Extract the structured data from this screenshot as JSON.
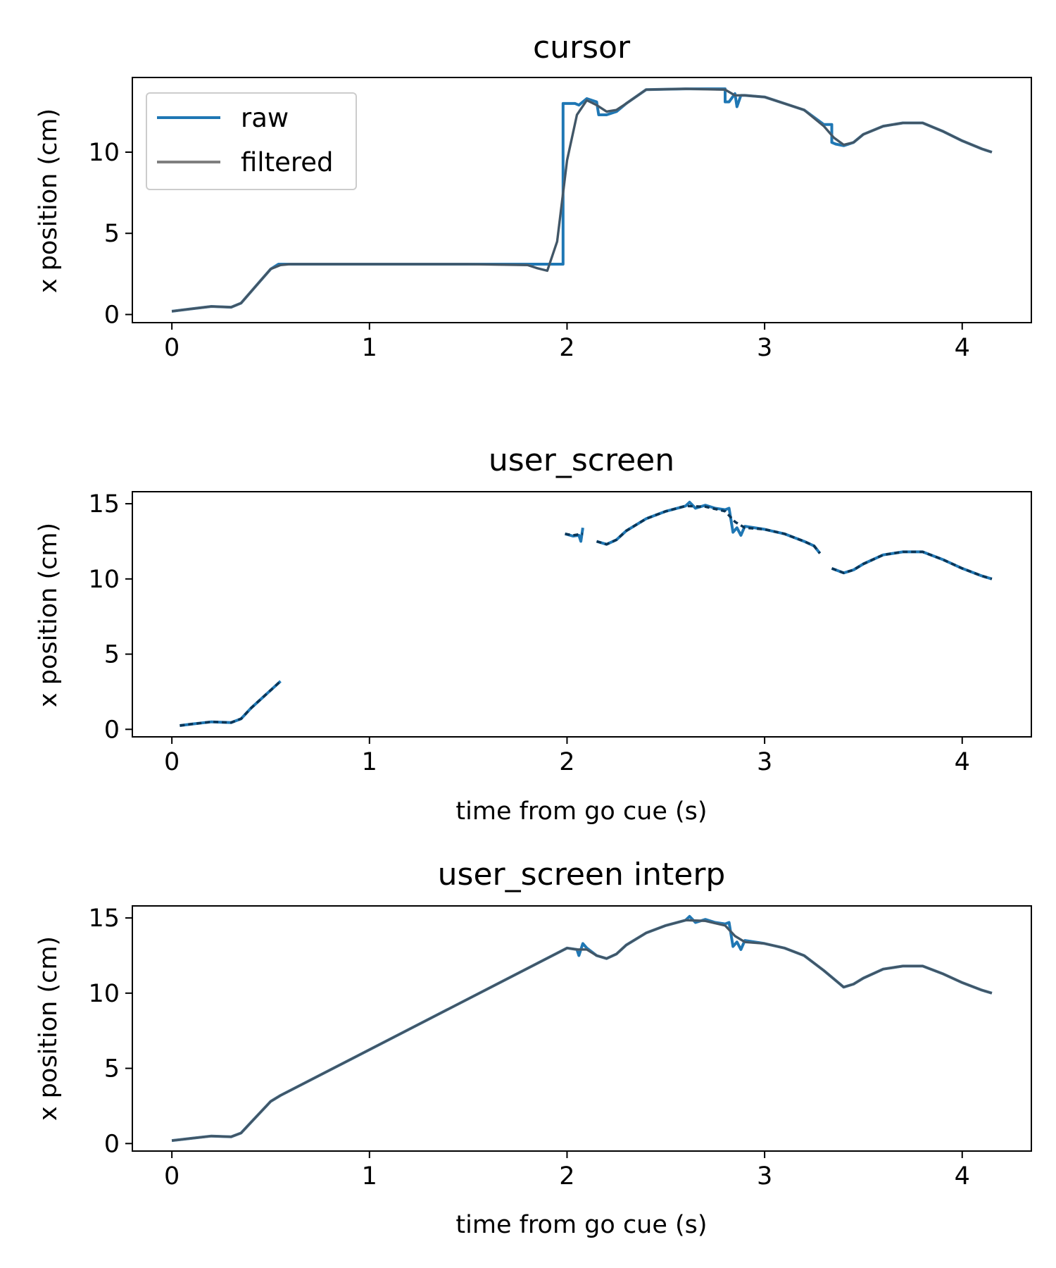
{
  "colors": {
    "raw": "#1f77b4",
    "filtered": "#7f7f7f",
    "filtered_overlap": "#0b3556",
    "axes": "#000000",
    "background": "#ffffff"
  },
  "chart_data": [
    {
      "type": "line",
      "title": "cursor",
      "xlabel": "",
      "ylabel": "x position (cm)",
      "xlim": [
        -0.2,
        4.35
      ],
      "ylim": [
        -0.5,
        14.6
      ],
      "xticks": [
        0,
        1,
        2,
        3,
        4
      ],
      "yticks": [
        0,
        5,
        10
      ],
      "grid": false,
      "legend": {
        "placement": "top-left",
        "entries": [
          "raw",
          "filtered"
        ]
      },
      "series": [
        {
          "name": "raw",
          "color": "#1f77b4",
          "style": "solid",
          "x": [
            0,
            0.1,
            0.2,
            0.3,
            0.35,
            0.4,
            0.45,
            0.5,
            0.54,
            0.55,
            0.6,
            1.0,
            1.5,
            1.9,
            1.98,
            1.98,
            2.0,
            2.04,
            2.06,
            2.1,
            2.15,
            2.16,
            2.2,
            2.25,
            2.3,
            2.4,
            2.6,
            2.8,
            2.8,
            2.82,
            2.85,
            2.86,
            2.88,
            2.9,
            3.0,
            3.1,
            3.2,
            3.3,
            3.34,
            3.34,
            3.36,
            3.4,
            3.45,
            3.5,
            3.6,
            3.7,
            3.8,
            3.9,
            4.0,
            4.1,
            4.15
          ],
          "y": [
            0.2,
            0.35,
            0.5,
            0.45,
            0.7,
            1.4,
            2.1,
            2.8,
            3.1,
            3.1,
            3.1,
            3.1,
            3.1,
            3.1,
            3.1,
            13.0,
            13.0,
            13.0,
            12.9,
            13.3,
            13.1,
            12.3,
            12.3,
            12.5,
            13.0,
            13.85,
            13.9,
            13.9,
            13.1,
            13.1,
            13.6,
            12.8,
            13.5,
            13.5,
            13.4,
            13.0,
            12.6,
            11.7,
            11.7,
            10.6,
            10.5,
            10.4,
            10.6,
            11.1,
            11.6,
            11.8,
            11.8,
            11.3,
            10.7,
            10.2,
            10.0
          ]
        },
        {
          "name": "filtered",
          "color": "#7f7f7f",
          "style": "solid",
          "x": [
            0,
            0.1,
            0.2,
            0.3,
            0.35,
            0.4,
            0.45,
            0.5,
            0.55,
            0.6,
            1.0,
            1.5,
            1.8,
            1.85,
            1.9,
            1.95,
            2.0,
            2.05,
            2.1,
            2.15,
            2.2,
            2.25,
            2.3,
            2.4,
            2.6,
            2.8,
            2.85,
            2.9,
            3.0,
            3.1,
            3.2,
            3.3,
            3.35,
            3.4,
            3.45,
            3.5,
            3.6,
            3.7,
            3.8,
            3.9,
            4.0,
            4.1,
            4.15
          ],
          "y": [
            0.2,
            0.35,
            0.5,
            0.45,
            0.7,
            1.4,
            2.1,
            2.8,
            3.05,
            3.1,
            3.1,
            3.1,
            3.05,
            2.85,
            2.7,
            4.5,
            9.5,
            12.3,
            13.2,
            12.9,
            12.5,
            12.6,
            13.0,
            13.85,
            13.9,
            13.85,
            13.5,
            13.5,
            13.4,
            13.0,
            12.6,
            11.6,
            10.9,
            10.45,
            10.6,
            11.1,
            11.6,
            11.8,
            11.8,
            11.3,
            10.7,
            10.2,
            10.0
          ]
        }
      ]
    },
    {
      "type": "line",
      "title": "user_screen",
      "xlabel": "time from go cue (s)",
      "ylabel": "x position (cm)",
      "xlim": [
        -0.2,
        4.35
      ],
      "ylim": [
        -0.5,
        15.8
      ],
      "xticks": [
        0,
        1,
        2,
        3,
        4
      ],
      "yticks": [
        0,
        5,
        10,
        15
      ],
      "grid": false,
      "series": [
        {
          "name": "raw",
          "color": "#1f77b4",
          "style": "dashed",
          "segments": [
            {
              "x": [
                0.04,
                0.1,
                0.2,
                0.3,
                0.35,
                0.4,
                0.45,
                0.5,
                0.55
              ],
              "y": [
                0.25,
                0.35,
                0.5,
                0.45,
                0.7,
                1.4,
                2.0,
                2.6,
                3.2
              ]
            },
            {
              "x": [
                1.99,
                2.03,
                2.06,
                2.07,
                2.08
              ],
              "y": [
                13.0,
                12.85,
                12.9,
                12.5,
                13.4
              ]
            },
            {
              "x": [
                2.15,
                2.2,
                2.25,
                2.3,
                2.4,
                2.5,
                2.6,
                2.62,
                2.65,
                2.7,
                2.75,
                2.8,
                2.82,
                2.84,
                2.86,
                2.88,
                2.9,
                3.0,
                3.1,
                3.2,
                3.25,
                3.28
              ],
              "y": [
                12.5,
                12.3,
                12.6,
                13.2,
                14.0,
                14.5,
                14.85,
                15.1,
                14.7,
                14.9,
                14.7,
                14.6,
                14.7,
                13.1,
                13.4,
                12.9,
                13.5,
                13.3,
                13.0,
                12.5,
                12.2,
                11.7
              ]
            },
            {
              "x": [
                3.34,
                3.4,
                3.45,
                3.5,
                3.6,
                3.7,
                3.8,
                3.9,
                4.0,
                4.1,
                4.15
              ],
              "y": [
                10.7,
                10.4,
                10.6,
                11.0,
                11.6,
                11.8,
                11.8,
                11.3,
                10.7,
                10.2,
                10.0
              ]
            }
          ]
        },
        {
          "name": "filtered",
          "color": "#7f7f7f",
          "style": "dashed",
          "segments": [
            {
              "x": [
                0.04,
                0.1,
                0.2,
                0.3,
                0.35,
                0.4,
                0.45,
                0.5,
                0.55
              ],
              "y": [
                0.25,
                0.35,
                0.5,
                0.45,
                0.7,
                1.4,
                2.0,
                2.6,
                3.2
              ]
            },
            {
              "x": [
                1.99,
                2.03,
                2.08
              ],
              "y": [
                13.0,
                12.9,
                13.0
              ]
            },
            {
              "x": [
                2.15,
                2.2,
                2.25,
                2.3,
                2.4,
                2.5,
                2.6,
                2.7,
                2.8,
                2.85,
                2.9,
                3.0,
                3.1,
                3.2,
                3.25,
                3.28
              ],
              "y": [
                12.5,
                12.3,
                12.6,
                13.2,
                14.0,
                14.5,
                14.85,
                14.8,
                14.5,
                13.8,
                13.4,
                13.3,
                13.0,
                12.5,
                12.2,
                11.7
              ]
            },
            {
              "x": [
                3.34,
                3.4,
                3.45,
                3.5,
                3.6,
                3.7,
                3.8,
                3.9,
                4.0,
                4.1,
                4.15
              ],
              "y": [
                10.7,
                10.4,
                10.6,
                11.0,
                11.6,
                11.8,
                11.8,
                11.3,
                10.7,
                10.2,
                10.0
              ]
            }
          ]
        }
      ]
    },
    {
      "type": "line",
      "title": "user_screen interp",
      "xlabel": "time from go cue (s)",
      "ylabel": "x position (cm)",
      "xlim": [
        -0.2,
        4.35
      ],
      "ylim": [
        -0.5,
        15.8
      ],
      "xticks": [
        0,
        1,
        2,
        3,
        4
      ],
      "yticks": [
        0,
        5,
        10,
        15
      ],
      "grid": false,
      "series": [
        {
          "name": "raw",
          "color": "#1f77b4",
          "style": "solid",
          "x": [
            0,
            0.1,
            0.2,
            0.3,
            0.35,
            0.4,
            0.45,
            0.5,
            0.55,
            2.0,
            2.05,
            2.06,
            2.08,
            2.1,
            2.15,
            2.2,
            2.25,
            2.3,
            2.4,
            2.5,
            2.6,
            2.62,
            2.65,
            2.7,
            2.75,
            2.8,
            2.82,
            2.84,
            2.86,
            2.88,
            2.9,
            3.0,
            3.1,
            3.2,
            3.3,
            3.4,
            3.45,
            3.5,
            3.6,
            3.7,
            3.8,
            3.9,
            4.0,
            4.1,
            4.15
          ],
          "y": [
            0.2,
            0.35,
            0.5,
            0.45,
            0.7,
            1.4,
            2.1,
            2.8,
            3.2,
            13.0,
            12.9,
            12.5,
            13.3,
            13.0,
            12.5,
            12.3,
            12.6,
            13.2,
            14.0,
            14.5,
            14.85,
            15.1,
            14.7,
            14.9,
            14.7,
            14.6,
            14.7,
            13.1,
            13.4,
            12.9,
            13.5,
            13.3,
            13.0,
            12.5,
            11.5,
            10.4,
            10.6,
            11.0,
            11.6,
            11.8,
            11.8,
            11.3,
            10.7,
            10.2,
            10.0
          ]
        },
        {
          "name": "filtered",
          "color": "#7f7f7f",
          "style": "solid",
          "x": [
            0,
            0.1,
            0.2,
            0.3,
            0.35,
            0.4,
            0.45,
            0.5,
            0.55,
            2.0,
            2.05,
            2.1,
            2.15,
            2.2,
            2.25,
            2.3,
            2.4,
            2.5,
            2.6,
            2.7,
            2.8,
            2.85,
            2.9,
            3.0,
            3.1,
            3.2,
            3.3,
            3.4,
            3.45,
            3.5,
            3.6,
            3.7,
            3.8,
            3.9,
            4.0,
            4.1,
            4.15
          ],
          "y": [
            0.2,
            0.35,
            0.5,
            0.45,
            0.7,
            1.4,
            2.1,
            2.8,
            3.2,
            13.0,
            12.9,
            12.9,
            12.5,
            12.3,
            12.6,
            13.2,
            14.0,
            14.5,
            14.85,
            14.8,
            14.5,
            13.8,
            13.4,
            13.3,
            13.0,
            12.5,
            11.5,
            10.4,
            10.6,
            11.0,
            11.6,
            11.8,
            11.8,
            11.3,
            10.7,
            10.2,
            10.0
          ]
        }
      ]
    }
  ]
}
